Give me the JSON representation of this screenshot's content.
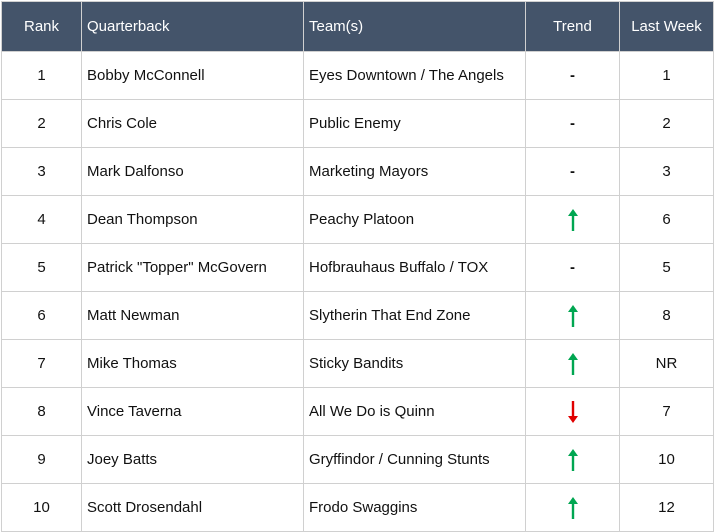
{
  "table": {
    "header": [
      "Rank",
      "Quarterback",
      "Team(s)",
      "Trend",
      "Last Week"
    ],
    "rows": [
      [
        1,
        "Bobby McConnell",
        "Eyes Downtown / The Angels",
        "-",
        1
      ],
      [
        2,
        "Chris Cole",
        "Public Enemy",
        "-",
        2
      ],
      [
        3,
        "Mark Dalfonso",
        "Marketing Mayors",
        "-",
        3
      ],
      [
        4,
        "Dean Thompson",
        "Peachy Platoon",
        null,
        6
      ],
      [
        5,
        "Patrick \"Topper\" McGovern",
        "Hofbrauhaus Buffalo / TOX",
        "-",
        5
      ],
      [
        6,
        "Matt Newman",
        "Slytherin That End Zone",
        null,
        8
      ],
      [
        7,
        "Mike Thomas",
        "Sticky Bandits",
        null,
        "NR"
      ],
      [
        8,
        "Vince Taverna",
        "All We Do is Quinn",
        null,
        7
      ],
      [
        9,
        "Joey Batts",
        "Gryffindor / Cunning Stunts",
        null,
        10
      ],
      [
        10,
        "Scott Drosendahl",
        "Frodo Swaggins",
        null,
        12
      ]
    ]
  }
}
